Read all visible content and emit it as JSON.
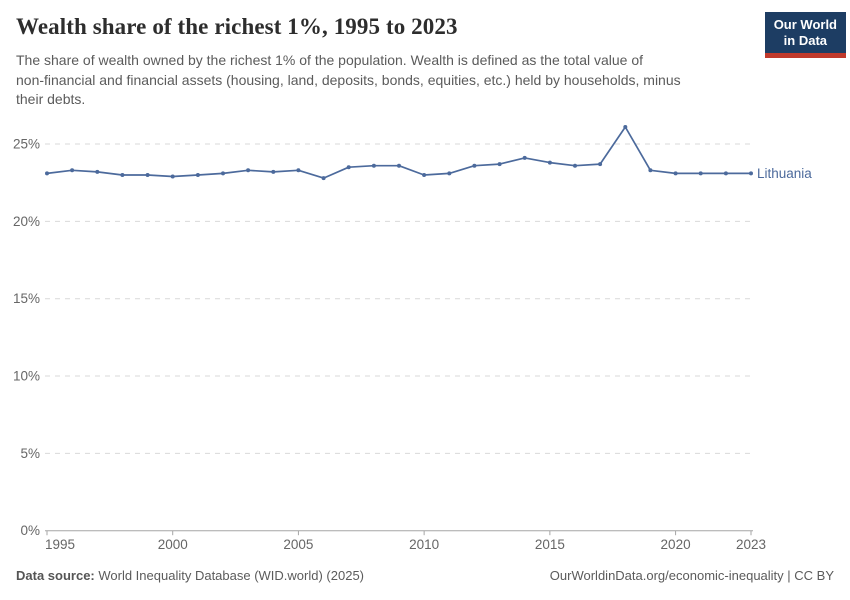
{
  "header": {
    "title": "Wealth share of the richest 1%, 1995 to 2023",
    "subtitle_lines": [
      "The share of wealth owned by the richest 1% of the population. Wealth is defined as the total value of",
      "non-financial and financial assets (housing, land, deposits, bonds, equities, etc.) held by households, minus",
      "their debts."
    ],
    "logo": {
      "line1": "Our World",
      "line2": "in Data"
    }
  },
  "chart_data": {
    "type": "line",
    "title": "Wealth share of the richest 1%, 1995 to 2023",
    "entity_label": "Lithuania",
    "x": [
      1995,
      1996,
      1997,
      1998,
      1999,
      2000,
      2001,
      2002,
      2003,
      2004,
      2005,
      2006,
      2007,
      2008,
      2009,
      2010,
      2011,
      2012,
      2013,
      2014,
      2015,
      2016,
      2017,
      2018,
      2019,
      2020,
      2021,
      2022,
      2023
    ],
    "values": [
      23.1,
      23.3,
      23.2,
      23.0,
      23.0,
      22.9,
      23.0,
      23.1,
      23.3,
      23.2,
      23.3,
      22.8,
      23.5,
      23.6,
      23.6,
      23.0,
      23.1,
      23.6,
      23.7,
      24.1,
      23.8,
      23.6,
      23.7,
      26.1,
      23.3,
      23.1,
      23.1,
      23.1,
      23.1
    ],
    "unit": "%",
    "ylim": [
      0,
      26.6
    ],
    "grid": true,
    "legend_position": "end-of-line",
    "line_color": "#4C6A9C",
    "grid_color": "#d9d9d9",
    "axis_color": "#a5a5a5",
    "tick_label_color": "#666666",
    "y_ticks": [
      {
        "value": 0,
        "label": "0%"
      },
      {
        "value": 5,
        "label": "5%"
      },
      {
        "value": 10,
        "label": "10%"
      },
      {
        "value": 15,
        "label": "15%"
      },
      {
        "value": 20,
        "label": "20%"
      },
      {
        "value": 25,
        "label": "25%"
      }
    ],
    "x_ticks": [
      {
        "value": 1995,
        "label": "1995"
      },
      {
        "value": 2000,
        "label": "2000"
      },
      {
        "value": 2005,
        "label": "2005"
      },
      {
        "value": 2010,
        "label": "2010"
      },
      {
        "value": 2015,
        "label": "2015"
      },
      {
        "value": 2020,
        "label": "2020"
      },
      {
        "value": 2023,
        "label": "2023"
      }
    ]
  },
  "footer": {
    "source_label": "Data source:",
    "source_text": " World Inequality Database (WID.world) (2025)",
    "attribution": "OurWorldinData.org/economic-inequality | CC BY"
  }
}
